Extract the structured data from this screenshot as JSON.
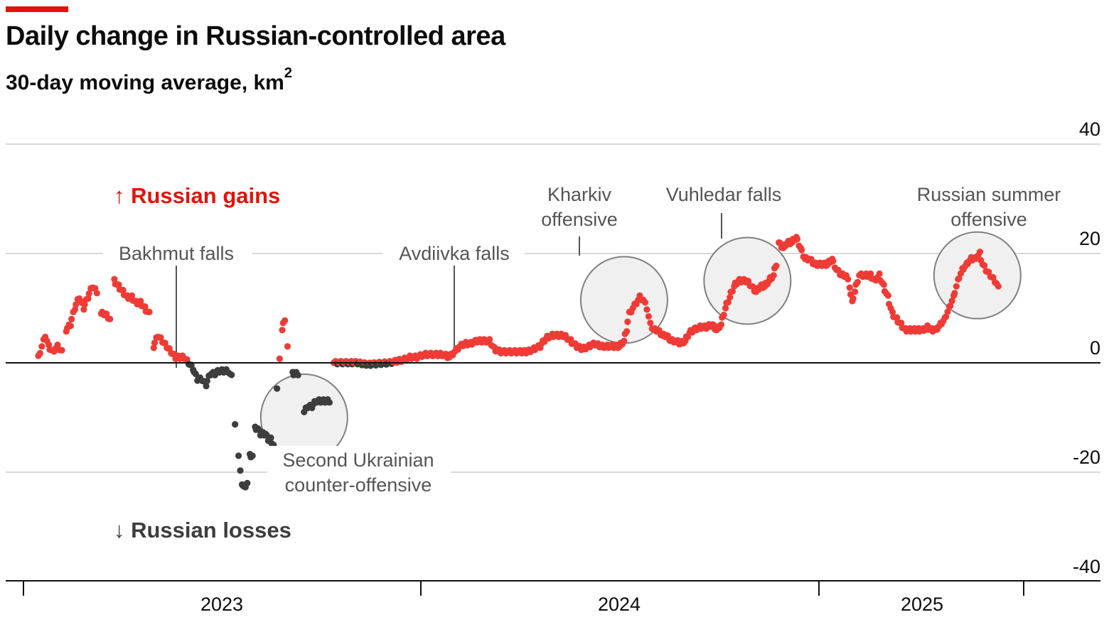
{
  "header": {
    "title": "Daily change in Russian-controlled area",
    "subtitle": "30-day moving average, km",
    "subtitle_sup": "2",
    "accent_color": "#e3120b"
  },
  "chart_data": {
    "type": "scatter",
    "title": "Daily change in Russian-controlled area",
    "subtitle": "30-day moving average, km²",
    "xlabel": "",
    "ylabel": "",
    "ylim": [
      -40,
      40
    ],
    "xlim": [
      "2022-07-15",
      "2025-09-30"
    ],
    "yticks": [
      40,
      20,
      0,
      -20,
      -40
    ],
    "ytick_labels": [
      "40",
      "20",
      "0",
      "-20",
      "-40"
    ],
    "xtick_labels": [
      "2023",
      "2024",
      "2025"
    ],
    "grid": true,
    "colors": {
      "gain": "#ef3b36",
      "loss": "#3d3d3d",
      "zero_line": "#111111",
      "grid": "#d9d9d9",
      "circle_fill": "#f0f0f0",
      "circle_stroke": "#808080"
    },
    "direction_labels": [
      {
        "text": "Russian gains",
        "arrow": "↑",
        "color": "#e3120b"
      },
      {
        "text": "Russian losses",
        "arrow": "↓",
        "color": "#3d3d3d"
      }
    ],
    "annotations": [
      {
        "lines": [
          "Bakhmut falls"
        ],
        "date": "2023-05-20",
        "value": -4
      },
      {
        "lines": [
          "Second Ukrainian",
          "counter-offensive"
        ],
        "date": "2023-07-01",
        "value": -11
      },
      {
        "lines": [
          "Avdiivka falls"
        ],
        "date": "2024-02-17",
        "value": 2
      },
      {
        "lines": [
          "Kharkiv",
          "offensive"
        ],
        "date": "2024-05-20",
        "value": 11
      },
      {
        "lines": [
          "Vuhledar falls"
        ],
        "date": "2024-09-20",
        "value": 15
      },
      {
        "lines": [
          "Russian summer",
          "offensive"
        ],
        "date": "2025-06-20",
        "value": 16
      }
    ],
    "series": [
      {
        "name": "Russian gains / losses",
        "points": [
          [
            "2022-08-01",
            1
          ],
          [
            "2022-08-05",
            3
          ],
          [
            "2022-08-09",
            5
          ],
          [
            "2022-08-13",
            3
          ],
          [
            "2022-08-18",
            2
          ],
          [
            "2022-08-23",
            3
          ],
          [
            "2022-08-28",
            2
          ],
          [
            "2022-09-02",
            6
          ],
          [
            "2022-09-07",
            7
          ],
          [
            "2022-09-12",
            10
          ],
          [
            "2022-09-17",
            12
          ],
          [
            "2022-09-22",
            10
          ],
          [
            "2022-09-27",
            12
          ],
          [
            "2022-10-02",
            14
          ],
          [
            "2022-10-07",
            13
          ],
          [
            "2022-10-12",
            9
          ],
          [
            "2022-10-17",
            9
          ],
          [
            "2022-10-22",
            8
          ],
          [
            "2022-10-27",
            15
          ],
          [
            "2022-11-01",
            14
          ],
          [
            "2022-11-06",
            13
          ],
          [
            "2022-11-11",
            12
          ],
          [
            "2022-11-16",
            12
          ],
          [
            "2022-11-21",
            11
          ],
          [
            "2022-11-26",
            11
          ],
          [
            "2022-12-01",
            10
          ],
          [
            "2022-12-06",
            9
          ],
          [
            "2022-12-11",
            3
          ],
          [
            "2022-12-16",
            5
          ],
          [
            "2022-12-21",
            4
          ],
          [
            "2022-12-26",
            3
          ],
          [
            "2022-12-31",
            2
          ],
          [
            "2023-01-05",
            1
          ],
          [
            "2023-01-10",
            1
          ],
          [
            "2023-01-15",
            1
          ],
          [
            "2023-01-20",
            0
          ],
          [
            "2023-01-25",
            -1
          ],
          [
            "2023-01-30",
            -3
          ],
          [
            "2023-02-04",
            -3
          ],
          [
            "2023-02-09",
            -4
          ],
          [
            "2023-02-14",
            -2
          ],
          [
            "2023-02-19",
            -2
          ],
          [
            "2023-02-24",
            -1.5
          ],
          [
            "2023-03-01",
            -1.5
          ],
          [
            "2023-03-06",
            -1.5
          ],
          [
            "2023-03-10",
            -2.5
          ],
          [
            "2023-03-14",
            -11
          ],
          [
            "2023-03-18",
            -17
          ],
          [
            "2023-03-20",
            -20
          ],
          [
            "2023-03-22",
            -22
          ],
          [
            "2023-03-25",
            -23
          ],
          [
            "2023-03-28",
            -22
          ],
          [
            "2023-03-31",
            -17
          ],
          [
            "2023-04-03",
            -17
          ],
          [
            "2023-04-06",
            -12
          ],
          [
            "2023-04-09",
            -12
          ],
          [
            "2023-04-12",
            -13
          ],
          [
            "2023-04-15",
            -13
          ],
          [
            "2023-04-18",
            -13
          ],
          [
            "2023-04-21",
            -14
          ],
          [
            "2023-04-24",
            -14
          ],
          [
            "2023-04-27",
            -15
          ],
          [
            "2023-05-01",
            -5
          ],
          [
            "2023-05-04",
            1
          ],
          [
            "2023-05-07",
            6
          ],
          [
            "2023-05-10",
            8
          ],
          [
            "2023-05-13",
            3
          ],
          [
            "2023-05-19",
            -2
          ],
          [
            "2023-05-22",
            -2
          ],
          [
            "2023-05-25",
            -2
          ],
          [
            "2023-06-01",
            -9
          ],
          [
            "2023-06-05",
            -8
          ],
          [
            "2023-06-10",
            -8
          ],
          [
            "2023-06-15",
            -7
          ],
          [
            "2023-06-20",
            -7
          ],
          [
            "2023-06-25",
            -7
          ],
          [
            "2023-06-30",
            -7
          ],
          [
            "2023-07-05",
            0
          ],
          [
            "2023-07-15",
            0
          ],
          [
            "2023-07-25",
            0
          ],
          [
            "2023-08-01",
            0
          ],
          [
            "2023-08-08",
            -0.2
          ],
          [
            "2023-08-15",
            -0.3
          ],
          [
            "2023-08-22",
            -0.2
          ],
          [
            "2023-08-30",
            -0.1
          ],
          [
            "2023-09-07",
            0
          ],
          [
            "2023-09-15",
            0.3
          ],
          [
            "2023-09-22",
            0.5
          ],
          [
            "2023-09-30",
            1
          ],
          [
            "2023-10-08",
            1
          ],
          [
            "2023-10-16",
            1.5
          ],
          [
            "2023-10-24",
            1.5
          ],
          [
            "2023-11-01",
            1.5
          ],
          [
            "2023-11-08",
            1.5
          ],
          [
            "2023-11-14",
            1
          ],
          [
            "2023-11-20",
            2
          ],
          [
            "2023-11-26",
            3
          ],
          [
            "2023-12-02",
            3.5
          ],
          [
            "2023-12-09",
            3.5
          ],
          [
            "2023-12-16",
            4
          ],
          [
            "2023-12-23",
            4
          ],
          [
            "2023-12-30",
            4
          ],
          [
            "2024-01-05",
            2.5
          ],
          [
            "2024-01-12",
            2
          ],
          [
            "2024-01-20",
            2
          ],
          [
            "2024-01-28",
            2
          ],
          [
            "2024-02-05",
            2
          ],
          [
            "2024-02-12",
            2
          ],
          [
            "2024-02-19",
            2.5
          ],
          [
            "2024-02-26",
            3
          ],
          [
            "2024-03-04",
            4.5
          ],
          [
            "2024-03-11",
            5
          ],
          [
            "2024-03-18",
            5
          ],
          [
            "2024-03-25",
            5
          ],
          [
            "2024-04-01",
            4
          ],
          [
            "2024-04-08",
            3
          ],
          [
            "2024-04-15",
            2.5
          ],
          [
            "2024-04-22",
            3
          ],
          [
            "2024-04-29",
            3.5
          ],
          [
            "2024-05-06",
            3
          ],
          [
            "2024-05-13",
            3
          ],
          [
            "2024-05-20",
            3
          ],
          [
            "2024-05-27",
            3
          ],
          [
            "2024-06-01",
            4
          ],
          [
            "2024-06-04",
            6
          ],
          [
            "2024-06-07",
            9
          ],
          [
            "2024-06-11",
            10
          ],
          [
            "2024-06-15",
            11
          ],
          [
            "2024-06-19",
            12
          ],
          [
            "2024-06-23",
            11.5
          ],
          [
            "2024-06-27",
            10
          ],
          [
            "2024-07-01",
            7
          ],
          [
            "2024-07-05",
            6
          ],
          [
            "2024-07-10",
            6
          ],
          [
            "2024-07-15",
            5
          ],
          [
            "2024-07-20",
            5
          ],
          [
            "2024-07-25",
            4
          ],
          [
            "2024-07-30",
            4
          ],
          [
            "2024-08-05",
            3.5
          ],
          [
            "2024-08-10",
            4
          ],
          [
            "2024-08-15",
            5.5
          ],
          [
            "2024-08-20",
            6
          ],
          [
            "2024-08-27",
            6.5
          ],
          [
            "2024-09-03",
            6.5
          ],
          [
            "2024-09-10",
            7
          ],
          [
            "2024-09-15",
            6
          ],
          [
            "2024-09-20",
            7
          ],
          [
            "2024-09-25",
            10
          ],
          [
            "2024-09-30",
            12
          ],
          [
            "2024-10-05",
            14
          ],
          [
            "2024-10-10",
            15
          ],
          [
            "2024-10-15",
            15
          ],
          [
            "2024-10-20",
            15
          ],
          [
            "2024-10-25",
            14
          ],
          [
            "2024-10-30",
            13
          ],
          [
            "2024-11-04",
            14
          ],
          [
            "2024-11-09",
            14
          ],
          [
            "2024-11-14",
            15
          ],
          [
            "2024-11-19",
            16
          ],
          [
            "2024-11-22",
            18
          ],
          [
            "2024-11-25",
            22
          ],
          [
            "2024-11-30",
            21
          ],
          [
            "2024-12-05",
            22
          ],
          [
            "2024-12-10",
            22
          ],
          [
            "2024-12-15",
            23
          ],
          [
            "2024-12-20",
            21
          ],
          [
            "2024-12-25",
            19
          ],
          [
            "2024-12-30",
            19
          ],
          [
            "2025-01-05",
            18
          ],
          [
            "2025-01-10",
            18
          ],
          [
            "2025-01-15",
            18
          ],
          [
            "2025-01-20",
            18
          ],
          [
            "2025-01-25",
            19
          ],
          [
            "2025-01-30",
            17
          ],
          [
            "2025-02-05",
            16
          ],
          [
            "2025-02-10",
            16
          ],
          [
            "2025-02-14",
            14
          ],
          [
            "2025-02-17",
            11
          ],
          [
            "2025-02-20",
            13
          ],
          [
            "2025-02-25",
            16
          ],
          [
            "2025-03-05",
            16
          ],
          [
            "2025-03-10",
            16
          ],
          [
            "2025-03-15",
            15
          ],
          [
            "2025-03-20",
            16
          ],
          [
            "2025-03-25",
            14
          ],
          [
            "2025-03-30",
            12
          ],
          [
            "2025-04-04",
            9
          ],
          [
            "2025-04-09",
            8
          ],
          [
            "2025-04-14",
            7
          ],
          [
            "2025-04-19",
            6
          ],
          [
            "2025-04-24",
            6
          ],
          [
            "2025-04-29",
            6
          ],
          [
            "2025-05-04",
            6
          ],
          [
            "2025-05-09",
            6
          ],
          [
            "2025-05-14",
            6.5
          ],
          [
            "2025-05-19",
            6
          ],
          [
            "2025-05-24",
            6
          ],
          [
            "2025-05-29",
            7
          ],
          [
            "2025-06-03",
            8
          ],
          [
            "2025-06-08",
            10
          ],
          [
            "2025-06-13",
            12
          ],
          [
            "2025-06-18",
            15
          ],
          [
            "2025-06-23",
            17
          ],
          [
            "2025-06-28",
            18
          ],
          [
            "2025-07-03",
            19
          ],
          [
            "2025-07-08",
            19
          ],
          [
            "2025-07-13",
            20
          ],
          [
            "2025-07-16",
            18
          ],
          [
            "2025-07-20",
            17
          ],
          [
            "2025-07-25",
            16
          ],
          [
            "2025-07-30",
            15
          ],
          [
            "2025-08-03",
            14
          ]
        ]
      }
    ]
  }
}
